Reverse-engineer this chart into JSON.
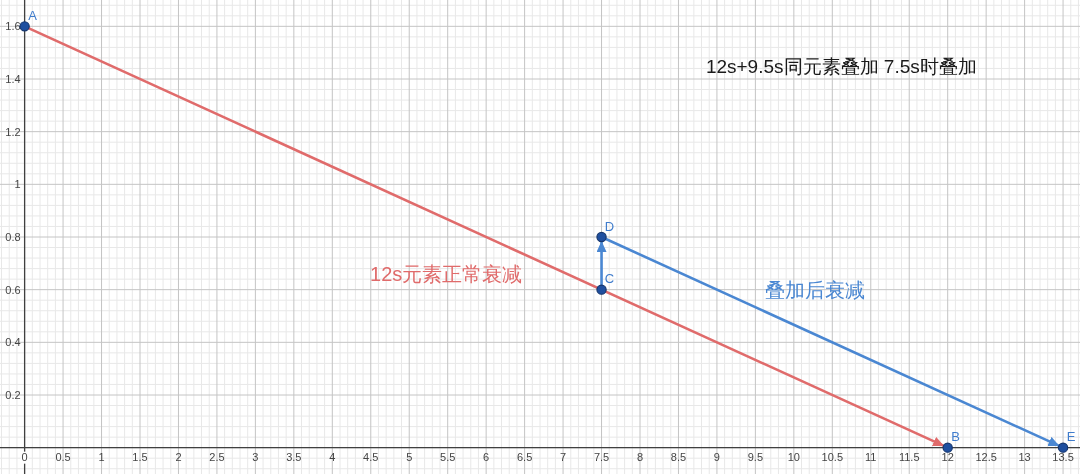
{
  "chart_data": {
    "type": "line",
    "title": "12s+9.5s同元素叠加 7.5s时叠加",
    "xlim": [
      -0.32,
      13.72
    ],
    "ylim": [
      -0.1,
      1.7
    ],
    "xticks": [
      0,
      0.5,
      1,
      1.5,
      2,
      2.5,
      3,
      3.5,
      4,
      4.5,
      5,
      5.5,
      6,
      6.5,
      7,
      7.5,
      8,
      8.5,
      9,
      9.5,
      10,
      10.5,
      11,
      11.5,
      12,
      12.5,
      13,
      13.5
    ],
    "yticks": [
      0.2,
      0.4,
      0.6,
      0.8,
      1,
      1.2,
      1.4,
      1.6
    ],
    "grid": true,
    "series": [
      {
        "name": "12s元素正常衰减",
        "color": "#e06b6b",
        "x": [
          0,
          12
        ],
        "values": [
          1.6,
          0
        ]
      },
      {
        "color": "#4a87d2",
        "x": [
          7.5,
          7.5
        ],
        "values": [
          0.6,
          0.8
        ]
      },
      {
        "name": "叠加后衰减",
        "color": "#4a87d2",
        "x": [
          7.5,
          13.5
        ],
        "values": [
          0.8,
          0
        ]
      },
      {
        "type": "scatter",
        "color": "#1f4f9f",
        "marker": "circle",
        "x": [
          0,
          12,
          7.5,
          7.5,
          13.5
        ],
        "values": [
          1.6,
          0,
          0.6,
          0.8,
          0
        ]
      }
    ],
    "annotations": [
      {
        "text": "A",
        "x": 0,
        "y": 1.6
      },
      {
        "text": "B",
        "x": 12,
        "y": 0
      },
      {
        "text": "C",
        "x": 7.5,
        "y": 0.6
      },
      {
        "text": "D",
        "x": 7.5,
        "y": 0.8
      },
      {
        "text": "E",
        "x": 13.5,
        "y": 0
      }
    ]
  }
}
